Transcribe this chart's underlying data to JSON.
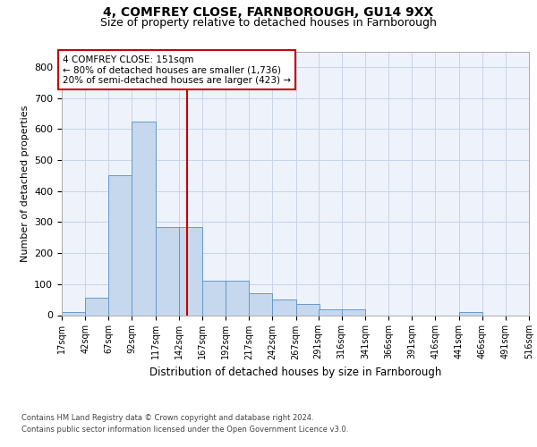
{
  "title1": "4, COMFREY CLOSE, FARNBOROUGH, GU14 9XX",
  "title2": "Size of property relative to detached houses in Farnborough",
  "xlabel": "Distribution of detached houses by size in Farnborough",
  "ylabel": "Number of detached properties",
  "footnote1": "Contains HM Land Registry data © Crown copyright and database right 2024.",
  "footnote2": "Contains public sector information licensed under the Open Government Licence v3.0.",
  "annotation_line1": "4 COMFREY CLOSE: 151sqm",
  "annotation_line2": "← 80% of detached houses are smaller (1,736)",
  "annotation_line3": "20% of semi-detached houses are larger (423) →",
  "bar_color": "#c5d8ee",
  "bar_edge_color": "#6699cc",
  "vline_color": "#cc0000",
  "vline_x": 151,
  "bins": [
    17,
    42,
    67,
    92,
    117,
    142,
    167,
    192,
    217,
    242,
    267,
    291,
    316,
    341,
    366,
    391,
    416,
    441,
    466,
    491,
    516
  ],
  "counts": [
    10,
    55,
    450,
    625,
    285,
    285,
    110,
    110,
    70,
    50,
    35,
    20,
    20,
    0,
    0,
    0,
    0,
    10,
    0,
    0,
    0
  ],
  "ylim": [
    0,
    850
  ],
  "yticks": [
    0,
    100,
    200,
    300,
    400,
    500,
    600,
    700,
    800
  ],
  "background_color": "#eef2fb",
  "grid_color": "#c8d4e8",
  "title1_fontsize": 10,
  "title2_fontsize": 9
}
